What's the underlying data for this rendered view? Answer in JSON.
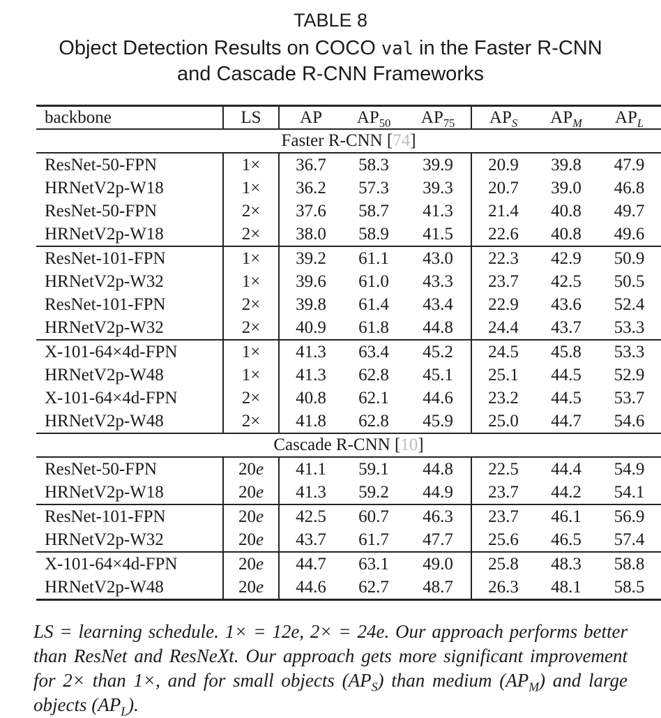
{
  "page": {
    "background": "#ffffff",
    "text_color": "#1b1b1b",
    "rule_color": "#242424",
    "citation_color": "#bdbdbd"
  },
  "title": {
    "label": "TABLE 8",
    "subtitle_lines": [
      [
        {
          "text": "Object Detection Results on COCO "
        },
        {
          "text": "val",
          "mono": true
        },
        {
          "text": " in the Faster R-CNN"
        }
      ],
      [
        {
          "text": "and Cascade R-CNN Frameworks"
        }
      ]
    ]
  },
  "table": {
    "columns": [
      {
        "key": "backbone",
        "label": "backbone"
      },
      {
        "key": "ls",
        "label": "LS"
      },
      {
        "key": "ap",
        "label": "AP"
      },
      {
        "key": "ap50",
        "label": "AP",
        "sub": "50"
      },
      {
        "key": "ap75",
        "label": "AP",
        "sub": "75"
      },
      {
        "key": "aps",
        "label": "AP",
        "sub": "S",
        "subItalic": true
      },
      {
        "key": "apm",
        "label": "AP",
        "sub": "M",
        "subItalic": true
      },
      {
        "key": "apl",
        "label": "AP",
        "sub": "L",
        "subItalic": true
      }
    ],
    "sections": [
      {
        "name": "Faster R-CNN",
        "ref": "74",
        "groups": [
          [
            [
              "ResNet-50-FPN",
              "1×",
              "36.7",
              "58.3",
              "39.9",
              "20.9",
              "39.8",
              "47.9"
            ],
            [
              "HRNetV2p-W18",
              "1×",
              "36.2",
              "57.3",
              "39.3",
              "20.7",
              "39.0",
              "46.8"
            ],
            [
              "ResNet-50-FPN",
              "2×",
              "37.6",
              "58.7",
              "41.3",
              "21.4",
              "40.8",
              "49.7"
            ],
            [
              "HRNetV2p-W18",
              "2×",
              "38.0",
              "58.9",
              "41.5",
              "22.6",
              "40.8",
              "49.6"
            ]
          ],
          [
            [
              "ResNet-101-FPN",
              "1×",
              "39.2",
              "61.1",
              "43.0",
              "22.3",
              "42.9",
              "50.9"
            ],
            [
              "HRNetV2p-W32",
              "1×",
              "39.6",
              "61.0",
              "43.3",
              "23.7",
              "42.5",
              "50.5"
            ],
            [
              "ResNet-101-FPN",
              "2×",
              "39.8",
              "61.4",
              "43.4",
              "22.9",
              "43.6",
              "52.4"
            ],
            [
              "HRNetV2p-W32",
              "2×",
              "40.9",
              "61.8",
              "44.8",
              "24.4",
              "43.7",
              "53.3"
            ]
          ],
          [
            [
              "X-101-64×4d-FPN",
              "1×",
              "41.3",
              "63.4",
              "45.2",
              "24.5",
              "45.8",
              "53.3"
            ],
            [
              "HRNetV2p-W48",
              "1×",
              "41.3",
              "62.8",
              "45.1",
              "25.1",
              "44.5",
              "52.9"
            ],
            [
              "X-101-64×4d-FPN",
              "2×",
              "40.8",
              "62.1",
              "44.6",
              "23.2",
              "44.5",
              "53.7"
            ],
            [
              "HRNetV2p-W48",
              "2×",
              "41.8",
              "62.8",
              "45.9",
              "25.0",
              "44.7",
              "54.6"
            ]
          ]
        ]
      },
      {
        "name": "Cascade R-CNN",
        "ref": "10",
        "groups": [
          [
            [
              "ResNet-50-FPN",
              "20e",
              "41.1",
              "59.1",
              "44.8",
              "22.5",
              "44.4",
              "54.9"
            ],
            [
              "HRNetV2p-W18",
              "20e",
              "41.3",
              "59.2",
              "44.9",
              "23.7",
              "44.2",
              "54.1"
            ]
          ],
          [
            [
              "ResNet-101-FPN",
              "20e",
              "42.5",
              "60.7",
              "46.3",
              "23.7",
              "46.1",
              "56.9"
            ],
            [
              "HRNetV2p-W32",
              "20e",
              "43.7",
              "61.7",
              "47.7",
              "25.6",
              "46.5",
              "57.4"
            ]
          ],
          [
            [
              "X-101-64×4d-FPN",
              "20e",
              "44.7",
              "63.1",
              "49.0",
              "25.8",
              "48.3",
              "58.8"
            ],
            [
              "HRNetV2p-W48",
              "20e",
              "44.6",
              "62.7",
              "48.7",
              "26.3",
              "48.1",
              "58.5"
            ]
          ]
        ]
      }
    ]
  },
  "caption": {
    "lines": [
      [
        {
          "t": "LS = learning schedule. 1× = 12e, 2× = 24e. Our approach performs better"
        }
      ],
      [
        {
          "t": "than ResNet and ResNeXt. Our approach gets more significant improvement"
        }
      ],
      [
        {
          "t": "for 2× than 1×, and for small objects (AP"
        },
        {
          "sub": "S"
        },
        {
          "t": ") than medium (AP"
        },
        {
          "sub": "M"
        },
        {
          "t": ") and large"
        }
      ],
      [
        {
          "t": "objects (AP"
        },
        {
          "sub": "L"
        },
        {
          "t": ")."
        }
      ]
    ]
  }
}
